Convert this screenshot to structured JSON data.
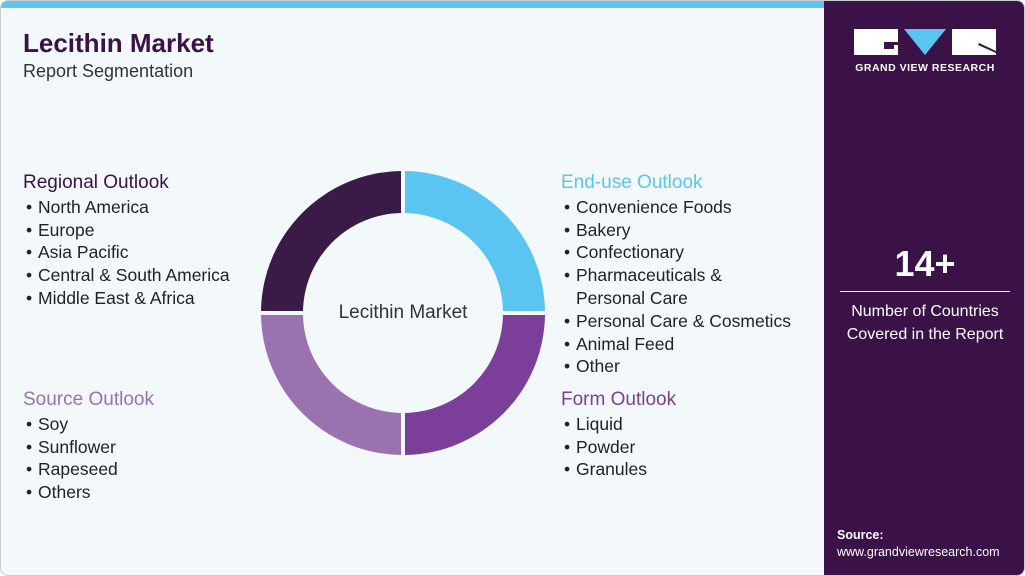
{
  "header": {
    "title": "Lecithin Market",
    "subtitle": "Report Segmentation"
  },
  "donut": {
    "center_label": "Lecithin Market",
    "colors": [
      "#5bc5f2",
      "#7b3f99",
      "#9b72b0",
      "#3a1a47"
    ]
  },
  "regional": {
    "title": "Regional Outlook",
    "color": "#3a1248",
    "items": [
      "North America",
      "Europe",
      "Asia Pacific",
      "Central & South America",
      "Middle East & Africa"
    ]
  },
  "source": {
    "title": "Source Outlook",
    "color": "#9b72b0",
    "items": [
      "Soy",
      "Sunflower",
      "Rapeseed",
      "Others"
    ]
  },
  "enduse": {
    "title": "End-use Outlook",
    "color": "#5bc5f2",
    "items": [
      "Convenience Foods",
      "Bakery",
      "Confectionary",
      "Pharmaceuticals &",
      "Personal Care",
      "Personal Care & Cosmetics",
      "Animal Feed",
      "Other"
    ]
  },
  "form": {
    "title": "Form Outlook",
    "color": "#7b3f99",
    "items": [
      "Liquid",
      "Powder",
      "Granules"
    ]
  },
  "brand": {
    "name": "GRAND VIEW RESEARCH"
  },
  "stat": {
    "value": "14+",
    "line1": "Number of Countries",
    "line2": "Covered in the Report"
  },
  "source_note": {
    "label": "Source:",
    "url": "www.grandviewresearch.com"
  }
}
